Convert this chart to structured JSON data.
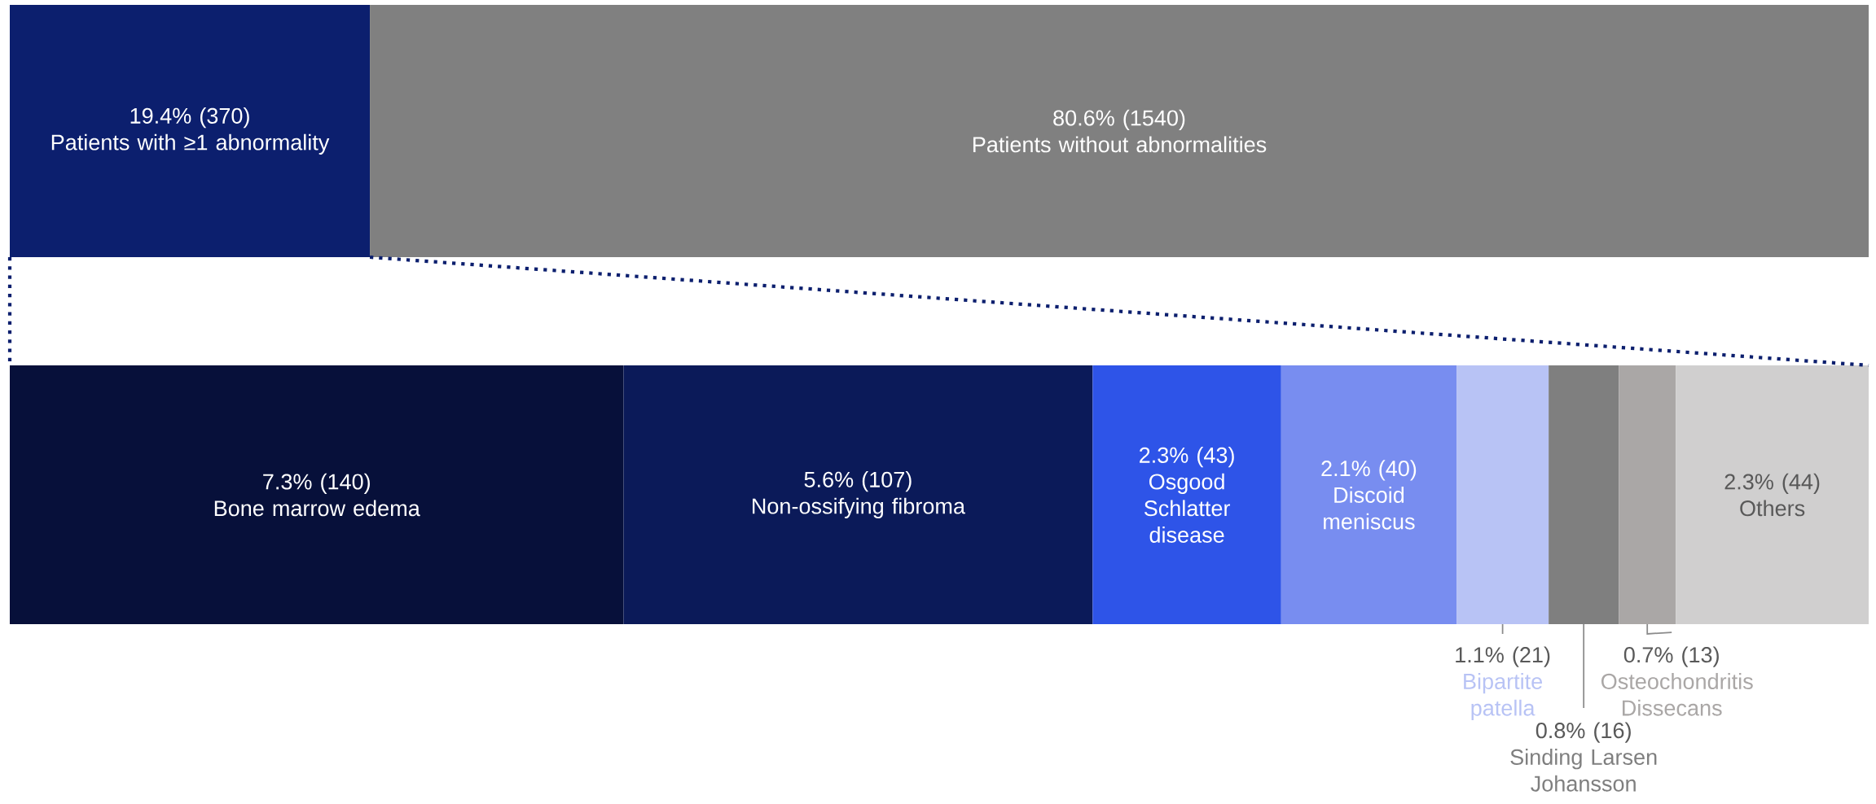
{
  "chart_data": [
    {
      "type": "bar",
      "orientation": "horizontal",
      "stacked": true,
      "categories": [
        null
      ],
      "xlim": [
        0,
        1910
      ],
      "tick_labels": false,
      "series": [
        {
          "name": "Patients with ≥1 abnormality",
          "color": "#0c1f6e",
          "values": [
            370
          ],
          "value_labels": [
            "19.4% (370)"
          ]
        },
        {
          "name": "Patients without abnormalities",
          "color": "#808080",
          "values": [
            1540
          ],
          "value_labels": [
            "80.6% (1540)"
          ]
        }
      ]
    },
    {
      "type": "bar",
      "orientation": "horizontal",
      "stacked": true,
      "categories": [
        null
      ],
      "xlim": [
        0,
        424
      ],
      "tick_labels": false,
      "series": [
        {
          "name": "Bone marrow edema",
          "color": "#07103a",
          "values": [
            140
          ],
          "value_labels": [
            "7.3% (140)"
          ]
        },
        {
          "name": "Non-ossifying fibroma",
          "color": "#0b1a59",
          "values": [
            107
          ],
          "value_labels": [
            "5.6% (107)"
          ]
        },
        {
          "name": "Osgood Schlatter disease",
          "color": "#2e54e8",
          "values": [
            43
          ],
          "value_labels": [
            "2.3% (43)"
          ]
        },
        {
          "name": "Discoid meniscus",
          "color": "#788df0",
          "values": [
            40
          ],
          "value_labels": [
            "2.1% (40)"
          ]
        },
        {
          "name": "Bipartite patella",
          "color": "#b8c3f5",
          "values": [
            21
          ],
          "value_labels": [
            "1.1% (21)"
          ]
        },
        {
          "name": "Sinding Larsen Johansson",
          "color": "#7f7f7f",
          "values": [
            16
          ],
          "value_labels": [
            "0.8% (16)"
          ]
        },
        {
          "name": "Osteochondritis Dissecans",
          "color": "#aaa7a6",
          "values": [
            13
          ],
          "value_labels": [
            "0.7% (13)"
          ]
        },
        {
          "name": "Others",
          "color": "#d0cfcf",
          "values": [
            44
          ],
          "value_labels": [
            "2.3% (44)"
          ]
        }
      ]
    }
  ]
}
